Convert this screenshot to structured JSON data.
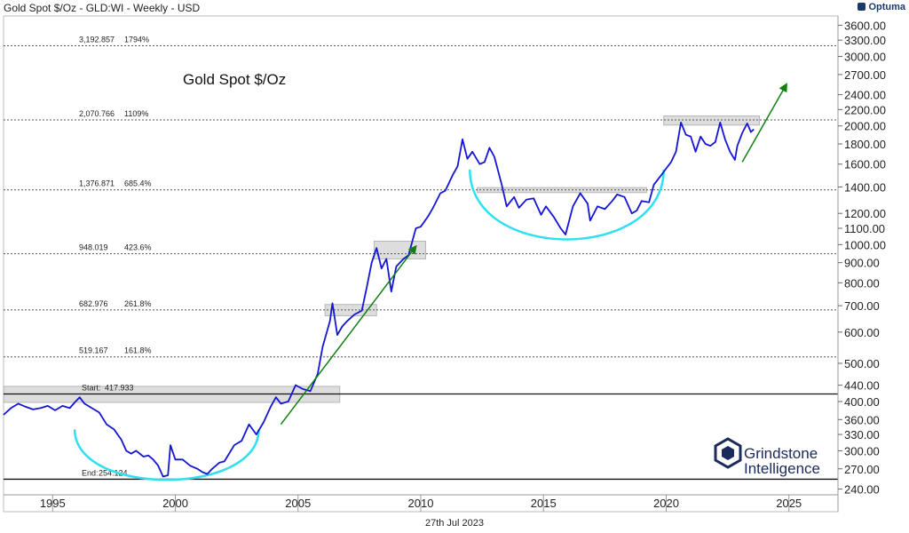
{
  "header": {
    "title": "Gold Spot $/Oz - GLD:WI - Weekly - USD",
    "brand": "Optuma"
  },
  "footer": {
    "date": "27th Jul 2023"
  },
  "logo": {
    "line1": "Grindstone",
    "line2": "Intelligence"
  },
  "colors": {
    "price": "#1515d6",
    "arc": "#2ee0f0",
    "arrow": "#108010",
    "levelLine": "#555555",
    "box": "#d8d8d8"
  },
  "chart_data": {
    "type": "line",
    "title": "Gold Spot $/Oz",
    "xlabel": "",
    "ylabel": "",
    "yscale": "log",
    "xlim": [
      1993,
      2027
    ],
    "ylim": [
      232,
      3800
    ],
    "x_ticks": [
      "1995",
      "2000",
      "2005",
      "2010",
      "2015",
      "2020",
      "2025"
    ],
    "y_ticks": [
      "3600.00",
      "3300.00",
      "3000.00",
      "2700.00",
      "2400.00",
      "2200.00",
      "2000.00",
      "1800.00",
      "1600.00",
      "1400.00",
      "1200.00",
      "1100.00",
      "1000.00",
      "900.00",
      "800.00",
      "700.00",
      "600.00",
      "500.00",
      "440.00",
      "400.00",
      "360.00",
      "330.00",
      "300.00",
      "270.00",
      "240.00"
    ],
    "fib_levels": [
      {
        "value": 3192.857,
        "label": "3,192.857",
        "pct": "1794%"
      },
      {
        "value": 2070.766,
        "label": "2,070.766",
        "pct": "1109%"
      },
      {
        "value": 1376.871,
        "label": "1,376.871",
        "pct": "685.4%"
      },
      {
        "value": 948.019,
        "label": "948.019",
        "pct": "423.6%"
      },
      {
        "value": 682.976,
        "label": "682.976",
        "pct": "261.8%"
      },
      {
        "value": 519.167,
        "label": "519.167",
        "pct": "161.8%"
      }
    ],
    "start_level": {
      "value": 417.933,
      "label": "Start:",
      "text": "417.933"
    },
    "end_level": {
      "value": 254.124,
      "label": "End:",
      "text": "254.124"
    },
    "series": [
      {
        "name": "Gold Spot $/Oz",
        "points": [
          [
            1993.0,
            370
          ],
          [
            1993.3,
            385
          ],
          [
            1993.6,
            395
          ],
          [
            1993.9,
            388
          ],
          [
            1994.2,
            382
          ],
          [
            1994.5,
            385
          ],
          [
            1994.8,
            390
          ],
          [
            1995.1,
            380
          ],
          [
            1995.4,
            390
          ],
          [
            1995.7,
            385
          ],
          [
            1995.9,
            398
          ],
          [
            1996.1,
            410
          ],
          [
            1996.3,
            395
          ],
          [
            1996.6,
            385
          ],
          [
            1996.9,
            375
          ],
          [
            1997.2,
            350
          ],
          [
            1997.5,
            340
          ],
          [
            1997.8,
            320
          ],
          [
            1998.0,
            300
          ],
          [
            1998.2,
            295
          ],
          [
            1998.4,
            300
          ],
          [
            1998.7,
            290
          ],
          [
            1998.9,
            292
          ],
          [
            1999.1,
            285
          ],
          [
            1999.3,
            275
          ],
          [
            1999.5,
            258
          ],
          [
            1999.7,
            260
          ],
          [
            1999.8,
            310
          ],
          [
            2000.0,
            285
          ],
          [
            2000.3,
            285
          ],
          [
            2000.6,
            275
          ],
          [
            2000.9,
            270
          ],
          [
            2001.1,
            265
          ],
          [
            2001.3,
            262
          ],
          [
            2001.5,
            270
          ],
          [
            2001.8,
            280
          ],
          [
            2002.0,
            282
          ],
          [
            2002.4,
            310
          ],
          [
            2002.7,
            318
          ],
          [
            2003.0,
            350
          ],
          [
            2003.3,
            330
          ],
          [
            2003.6,
            355
          ],
          [
            2003.9,
            390
          ],
          [
            2004.1,
            410
          ],
          [
            2004.3,
            395
          ],
          [
            2004.6,
            400
          ],
          [
            2004.9,
            440
          ],
          [
            2005.2,
            430
          ],
          [
            2005.5,
            425
          ],
          [
            2005.8,
            470
          ],
          [
            2006.0,
            550
          ],
          [
            2006.3,
            640
          ],
          [
            2006.4,
            710
          ],
          [
            2006.6,
            590
          ],
          [
            2006.8,
            620
          ],
          [
            2007.0,
            640
          ],
          [
            2007.3,
            665
          ],
          [
            2007.6,
            680
          ],
          [
            2007.8,
            780
          ],
          [
            2008.0,
            900
          ],
          [
            2008.2,
            980
          ],
          [
            2008.4,
            870
          ],
          [
            2008.6,
            920
          ],
          [
            2008.8,
            760
          ],
          [
            2009.0,
            880
          ],
          [
            2009.3,
            920
          ],
          [
            2009.5,
            940
          ],
          [
            2009.8,
            1100
          ],
          [
            2010.0,
            1110
          ],
          [
            2010.3,
            1180
          ],
          [
            2010.5,
            1240
          ],
          [
            2010.8,
            1350
          ],
          [
            2011.0,
            1370
          ],
          [
            2011.3,
            1500
          ],
          [
            2011.5,
            1580
          ],
          [
            2011.7,
            1850
          ],
          [
            2011.9,
            1650
          ],
          [
            2012.1,
            1720
          ],
          [
            2012.4,
            1600
          ],
          [
            2012.6,
            1620
          ],
          [
            2012.8,
            1760
          ],
          [
            2013.0,
            1670
          ],
          [
            2013.3,
            1420
          ],
          [
            2013.5,
            1250
          ],
          [
            2013.8,
            1320
          ],
          [
            2014.0,
            1240
          ],
          [
            2014.3,
            1300
          ],
          [
            2014.6,
            1310
          ],
          [
            2014.9,
            1190
          ],
          [
            2015.1,
            1250
          ],
          [
            2015.4,
            1180
          ],
          [
            2015.7,
            1100
          ],
          [
            2015.9,
            1060
          ],
          [
            2016.2,
            1250
          ],
          [
            2016.5,
            1350
          ],
          [
            2016.8,
            1270
          ],
          [
            2016.9,
            1150
          ],
          [
            2017.2,
            1250
          ],
          [
            2017.5,
            1230
          ],
          [
            2017.8,
            1290
          ],
          [
            2018.0,
            1340
          ],
          [
            2018.3,
            1320
          ],
          [
            2018.6,
            1200
          ],
          [
            2018.8,
            1220
          ],
          [
            2019.0,
            1290
          ],
          [
            2019.3,
            1280
          ],
          [
            2019.5,
            1420
          ],
          [
            2019.8,
            1500
          ],
          [
            2020.0,
            1560
          ],
          [
            2020.2,
            1620
          ],
          [
            2020.4,
            1720
          ],
          [
            2020.6,
            2040
          ],
          [
            2020.8,
            1900
          ],
          [
            2021.0,
            1880
          ],
          [
            2021.2,
            1720
          ],
          [
            2021.4,
            1880
          ],
          [
            2021.6,
            1800
          ],
          [
            2021.8,
            1780
          ],
          [
            2022.0,
            1820
          ],
          [
            2022.2,
            2040
          ],
          [
            2022.4,
            1850
          ],
          [
            2022.6,
            1720
          ],
          [
            2022.8,
            1640
          ],
          [
            2022.9,
            1780
          ],
          [
            2023.1,
            1920
          ],
          [
            2023.3,
            2030
          ],
          [
            2023.45,
            1930
          ],
          [
            2023.57,
            1960
          ]
        ]
      }
    ],
    "annotations": {
      "arcs": [
        {
          "x0": 1995.9,
          "x1": 2003.4,
          "y_top": 340,
          "y_bottom": 253
        },
        {
          "x0": 2012.0,
          "x1": 2019.9,
          "y_top": 1550,
          "y_bottom": 1030
        }
      ],
      "arrows": [
        {
          "from": [
            2004.3,
            350
          ],
          "to": [
            2009.8,
            990
          ]
        },
        {
          "from": [
            2023.1,
            1620
          ],
          "to": [
            2024.9,
            2550
          ]
        }
      ],
      "boxes": [
        {
          "x0": 1993.0,
          "x1": 2006.7,
          "y0": 398,
          "y1": 437
        },
        {
          "x0": 2006.1,
          "x1": 2008.2,
          "y0": 660,
          "y1": 705
        },
        {
          "x0": 2008.1,
          "x1": 2010.2,
          "y0": 920,
          "y1": 1020
        },
        {
          "x0": 2012.3,
          "x1": 2019.2,
          "y0": 1355,
          "y1": 1395
        },
        {
          "x0": 2019.9,
          "x1": 2023.8,
          "y0": 2010,
          "y1": 2120
        }
      ]
    }
  }
}
